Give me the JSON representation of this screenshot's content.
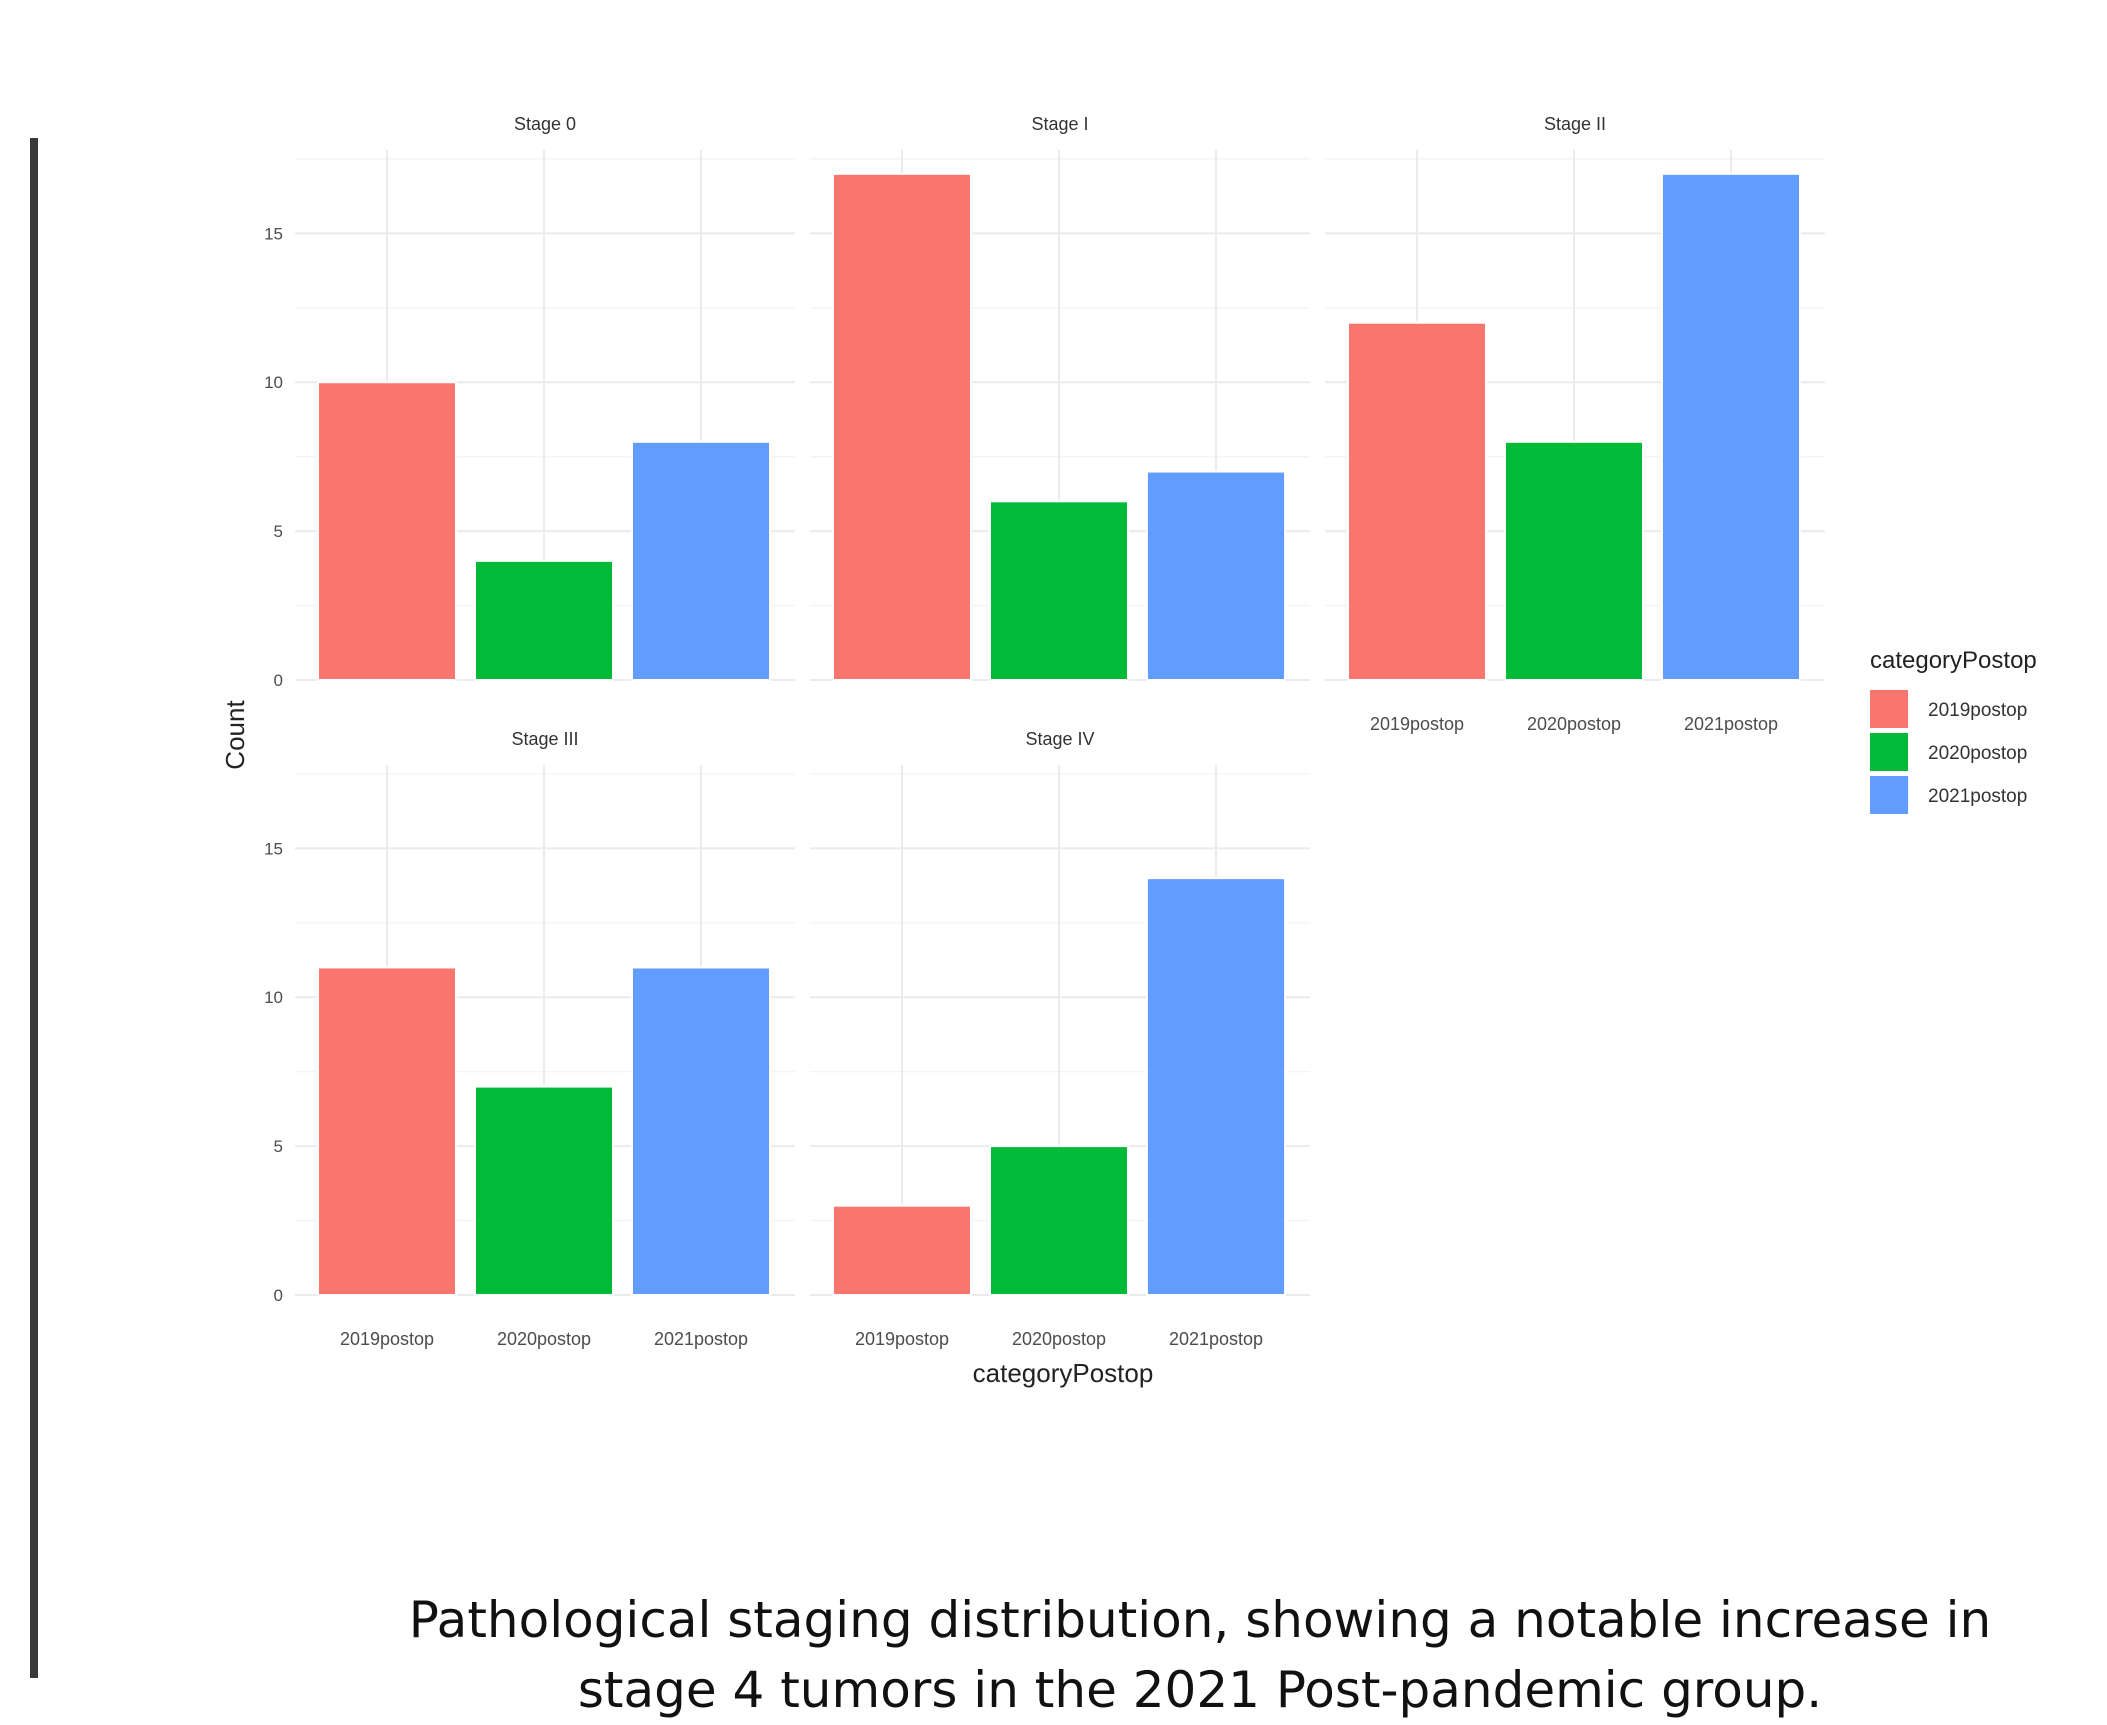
{
  "chart_data": {
    "type": "bar",
    "facets": [
      {
        "title": "Stage 0",
        "values": [
          10,
          4,
          8
        ]
      },
      {
        "title": "Stage I",
        "values": [
          17,
          6,
          7
        ]
      },
      {
        "title": "Stage II",
        "values": [
          12,
          8,
          17
        ]
      },
      {
        "title": "Stage III",
        "values": [
          11,
          7,
          11
        ]
      },
      {
        "title": "Stage IV",
        "values": [
          3,
          5,
          14
        ]
      }
    ],
    "categories": [
      "2019postop",
      "2020postop",
      "2021postop"
    ],
    "xlabel": "categoryPostop",
    "ylabel": "Count",
    "ylim": [
      0,
      17.8
    ],
    "yticks": [
      0,
      5,
      10,
      15
    ],
    "grid": true,
    "colors": [
      "#f8766d",
      "#00ba38",
      "#619cff"
    ],
    "legend": {
      "title": "categoryPostop",
      "placement": "right",
      "entries": [
        "2019postop",
        "2020postop",
        "2021postop"
      ]
    }
  },
  "caption": {
    "line1": "Pathological staging distribution, showing a notable increase in",
    "line2": "stage 4 tumors in the 2021 Post-pandemic group."
  }
}
